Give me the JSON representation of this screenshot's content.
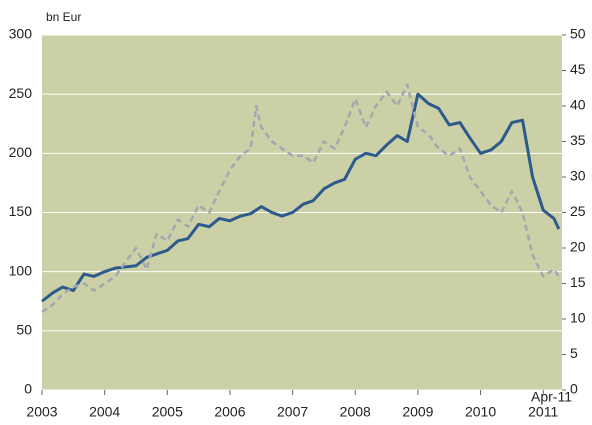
{
  "chart_data": {
    "type": "line",
    "y_label": "bn Eur",
    "annotation": "Apr-11",
    "background": "#cbd0a6",
    "grid": true,
    "xlim": [
      2003,
      2011.3
    ],
    "xticks": [
      2003,
      2004,
      2005,
      2006,
      2007,
      2008,
      2009,
      2010,
      2011
    ],
    "ylim": [
      0,
      300
    ],
    "yticks": [
      0,
      50,
      100,
      150,
      200,
      250,
      300
    ],
    "y2lim": [
      0,
      50
    ],
    "y2ticks": [
      0,
      5,
      10,
      15,
      20,
      25,
      30,
      35,
      40,
      45,
      50
    ],
    "series": [
      {
        "color": "#2d5a8c",
        "dashed": false,
        "x": [
          2003.0,
          2003.17,
          2003.33,
          2003.5,
          2003.67,
          2003.83,
          2004.0,
          2004.17,
          2004.33,
          2004.5,
          2004.67,
          2004.83,
          2005.0,
          2005.17,
          2005.33,
          2005.5,
          2005.67,
          2005.83,
          2006.0,
          2006.17,
          2006.33,
          2006.5,
          2006.67,
          2006.83,
          2007.0,
          2007.17,
          2007.33,
          2007.5,
          2007.67,
          2007.83,
          2008.0,
          2008.17,
          2008.33,
          2008.5,
          2008.67,
          2008.83,
          2009.0,
          2009.17,
          2009.33,
          2009.5,
          2009.67,
          2009.83,
          2010.0,
          2010.17,
          2010.33,
          2010.5,
          2010.67,
          2010.83,
          2011.0,
          2011.17,
          2011.25
        ],
        "values": [
          75,
          82,
          87,
          84,
          98,
          96,
          100,
          103,
          104,
          105,
          112,
          115,
          118,
          126,
          128,
          140,
          138,
          145,
          143,
          147,
          149,
          155,
          150,
          147,
          150,
          157,
          160,
          170,
          175,
          178,
          195,
          200,
          198,
          207,
          215,
          210,
          250,
          242,
          238,
          224,
          226,
          213,
          200,
          203,
          210,
          226,
          228,
          180,
          152,
          145,
          136
        ]
      },
      {
        "color": "#a3a7b0",
        "dashed": true,
        "axis": "y2",
        "x": [
          2003.0,
          2003.17,
          2003.33,
          2003.5,
          2003.67,
          2003.83,
          2004.0,
          2004.17,
          2004.33,
          2004.5,
          2004.67,
          2004.83,
          2005.0,
          2005.17,
          2005.33,
          2005.5,
          2005.67,
          2005.83,
          2006.0,
          2006.17,
          2006.33,
          2006.42,
          2006.5,
          2006.67,
          2006.83,
          2007.0,
          2007.17,
          2007.33,
          2007.5,
          2007.67,
          2007.83,
          2008.0,
          2008.17,
          2008.33,
          2008.5,
          2008.67,
          2008.83,
          2009.0,
          2009.17,
          2009.33,
          2009.5,
          2009.67,
          2009.83,
          2010.0,
          2010.17,
          2010.33,
          2010.5,
          2010.67,
          2010.83,
          2011.0,
          2011.17,
          2011.25
        ],
        "values": [
          11,
          12,
          13.5,
          14.5,
          15,
          14,
          15,
          16,
          18,
          20,
          17,
          22,
          21,
          24,
          23,
          26,
          25,
          28,
          31,
          33,
          34,
          40,
          37,
          35,
          34,
          33,
          33,
          32,
          35,
          34,
          37,
          41,
          37,
          40,
          42,
          40,
          43,
          37,
          36,
          34,
          33,
          34,
          30,
          28,
          26,
          25,
          28,
          25,
          19,
          16,
          17,
          16
        ]
      }
    ]
  }
}
